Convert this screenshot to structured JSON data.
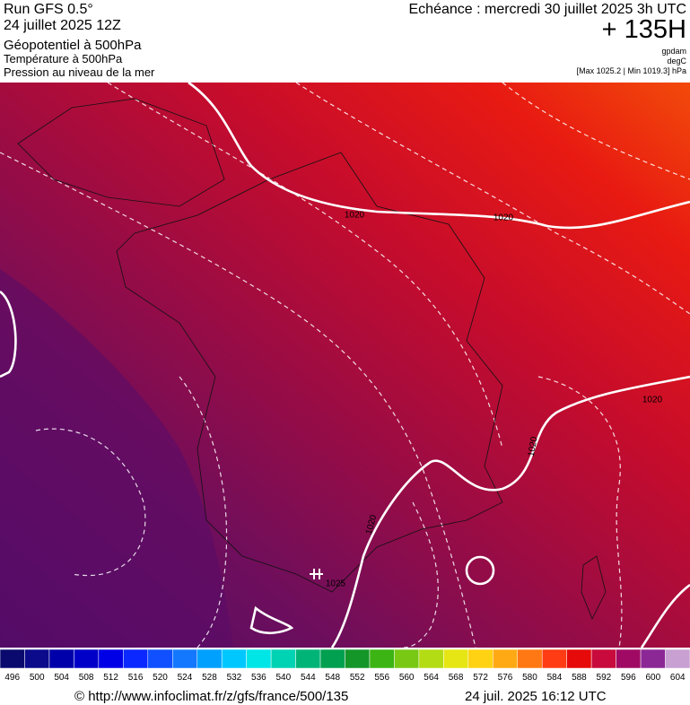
{
  "header": {
    "left": [
      "Run GFS 0.5°",
      "24 juillet 2025 12Z",
      "Géopotentiel à 500hPa",
      "Température à 500hPa",
      "Pression au niveau de la mer"
    ],
    "valid": "Echéance : mercredi 30 juillet 2025 3h UTC",
    "lead": "+ 135H",
    "units": [
      "gpdam",
      "degC"
    ],
    "range": "[Max 1025.2 | Min 1019.3] hPa"
  },
  "map": {
    "isobar_labels": [
      "1020",
      "1020",
      "1020",
      "1020",
      "1020",
      "1025"
    ]
  },
  "colorbar": {
    "labels": [
      496,
      500,
      504,
      508,
      512,
      516,
      520,
      524,
      528,
      532,
      536,
      540,
      544,
      548,
      552,
      556,
      560,
      564,
      568,
      572,
      576,
      580,
      584,
      588,
      592,
      596,
      600,
      604
    ],
    "colors": [
      "#0a0a6e",
      "#0b0b8c",
      "#0000aa",
      "#0000c8",
      "#0000e6",
      "#0a28ff",
      "#1050ff",
      "#1478ff",
      "#00a0ff",
      "#00c8ff",
      "#00e6e6",
      "#00d2b4",
      "#00b478",
      "#00a050",
      "#149628",
      "#3cb414",
      "#78c814",
      "#b4dc14",
      "#e6e614",
      "#ffd214",
      "#ffaa14",
      "#ff7814",
      "#ff3c14",
      "#e60a0a",
      "#c80a3c",
      "#a00a64",
      "#8c2896",
      "#c8a0d2"
    ]
  },
  "footer": {
    "source": "© http://www.infoclimat.fr/z/gfs/france/500/135",
    "timestamp": "24 juil. 2025 16:12 UTC"
  }
}
